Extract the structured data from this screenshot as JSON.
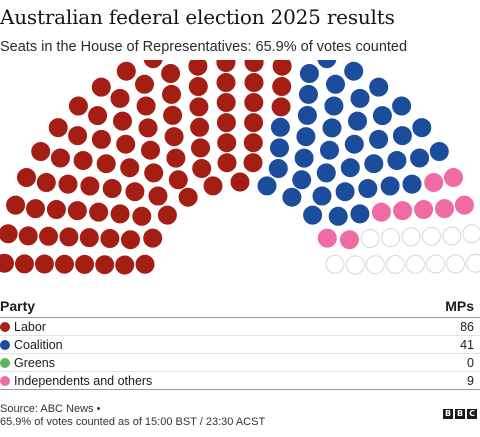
{
  "title": "Australian federal election 2025 results",
  "subtitle": "Seats in the House of Representatives: 65.9% of votes counted",
  "legend": {
    "party_header": "Party",
    "mps_header": "MPs"
  },
  "chart_data": {
    "type": "parliament",
    "total_seats": 150,
    "parties": [
      {
        "name": "Labor",
        "seats": 86,
        "color": "#a51e14"
      },
      {
        "name": "Coalition",
        "seats": 41,
        "color": "#1c4c9c"
      },
      {
        "name": "Greens",
        "seats": 0,
        "color": "#5db45a"
      },
      {
        "name": "Independents and others",
        "seats": 9,
        "color": "#f06ba3"
      }
    ],
    "undeclared": {
      "seats": 14,
      "color": "#ffffff",
      "stroke": "#d6d6d6"
    }
  },
  "footer": {
    "source": "Source: ABC News •",
    "note": "65.9% of votes counted as of 15:00 BST / 23:30 ACST"
  },
  "logo": [
    "B",
    "B",
    "C"
  ]
}
